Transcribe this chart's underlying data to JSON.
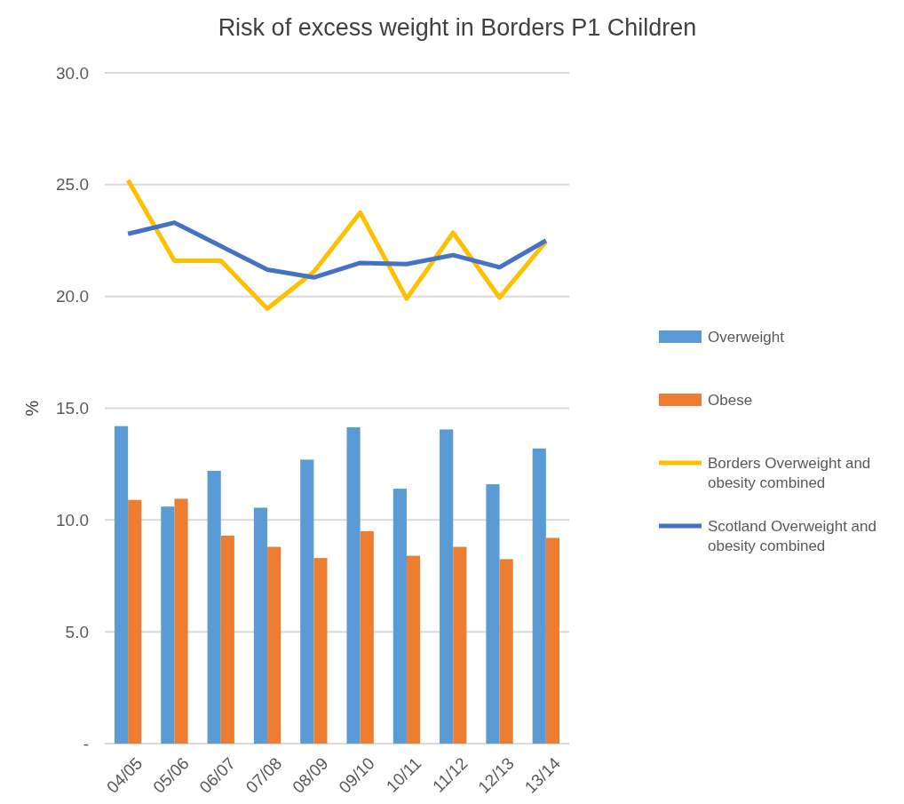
{
  "chart_data": {
    "type": "bar",
    "title": "Risk of excess weight in Borders P1 Children",
    "ylabel": "%",
    "categories": [
      "04/05",
      "05/06",
      "06/07",
      "07/08",
      "08/09",
      "09/10",
      "10/11",
      "11/12",
      "12/13",
      "13/14"
    ],
    "series": [
      {
        "name": "Overweight",
        "color": "#5b9bd5",
        "values": [
          14.2,
          10.6,
          12.2,
          10.55,
          12.7,
          14.15,
          11.4,
          14.05,
          11.6,
          13.2
        ]
      },
      {
        "name": "Obese",
        "color": "#ed7d31",
        "values": [
          10.9,
          10.95,
          9.3,
          8.8,
          8.3,
          9.5,
          8.4,
          8.8,
          8.25,
          9.2
        ]
      },
      {
        "name": "Borders Overweight and obesity combined",
        "type": "line",
        "color": "#ffc000",
        "values": [
          25.2,
          21.6,
          21.6,
          19.45,
          21.1,
          23.75,
          19.9,
          22.85,
          19.95,
          22.45
        ]
      },
      {
        "name": "Scotland Overweight and obesity combined",
        "type": "line",
        "color": "#4472c4",
        "values": [
          22.8,
          23.3,
          22.25,
          21.2,
          20.85,
          21.5,
          21.45,
          21.85,
          21.3,
          22.5
        ]
      }
    ],
    "ylim": [
      0,
      30
    ],
    "yticks": [
      {
        "value": 0,
        "label": "-"
      },
      {
        "value": 5,
        "label": "5.0"
      },
      {
        "value": 10,
        "label": "10.0"
      },
      {
        "value": 15,
        "label": "15.0"
      },
      {
        "value": 20,
        "label": "20.0"
      },
      {
        "value": 25,
        "label": "25.0"
      },
      {
        "value": 30,
        "label": "30.0"
      }
    ],
    "grid": "y",
    "legend": "right",
    "marker": "none",
    "line_style": "solid"
  }
}
